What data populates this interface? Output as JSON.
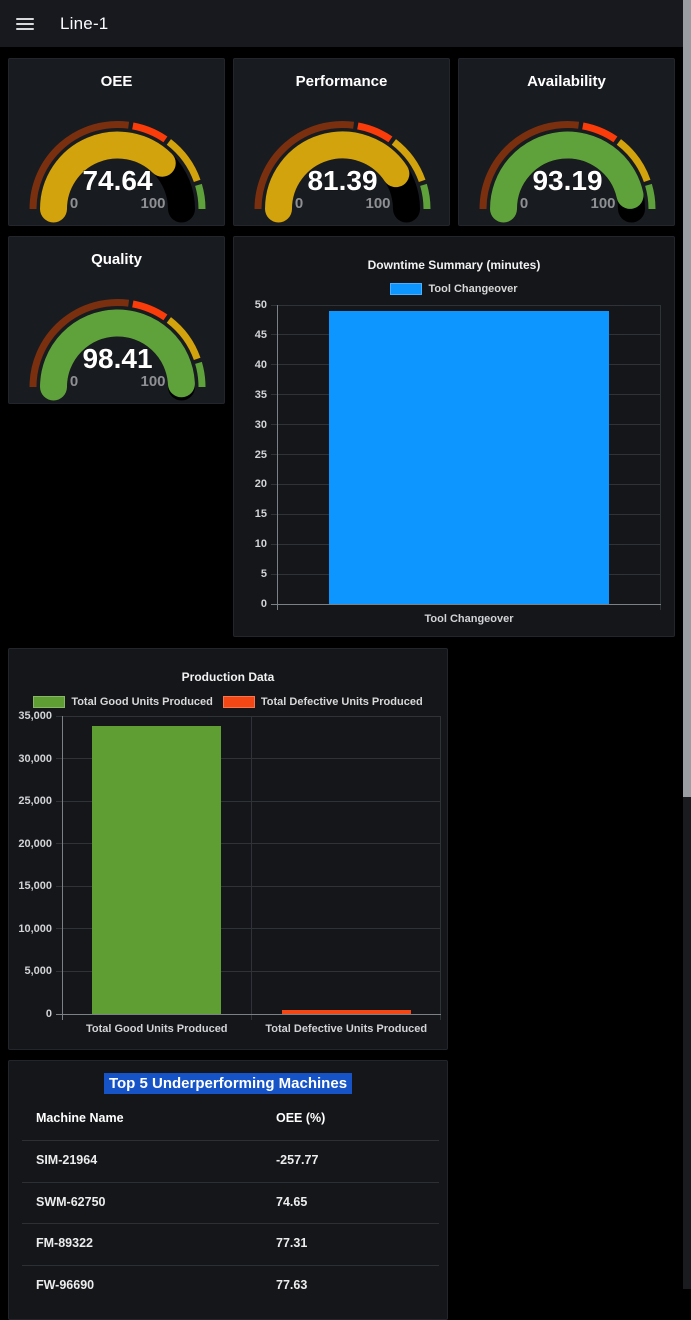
{
  "header": {
    "title": "Line-1",
    "menu_icon": "hamburger-icon"
  },
  "colors": {
    "topbar_bg": "#17191f",
    "panel_bg": "#181b1f",
    "accent_blue": "#0d96ff",
    "good_green": "#5f9e33",
    "defect_red": "#f34716",
    "gauge_yellow": "#d2a30d",
    "gauge_green": "#5fa23c",
    "threshold_dark_red": "#7a2f0f",
    "threshold_red": "#fa3c0a",
    "table_title_highlight": "#1553c6",
    "scrollbar_thumb": "#9a9da1"
  },
  "gauge_thresholds": [
    {
      "from": 0,
      "color": "#7a2f0f"
    },
    {
      "from": 55,
      "color": "#fa3c0a"
    },
    {
      "from": 70,
      "color": "#d2a30d"
    },
    {
      "from": 90,
      "color": "#5fa23c"
    }
  ],
  "gauges": [
    {
      "title": "OEE",
      "value": "74.64",
      "min": "0",
      "max": "100"
    },
    {
      "title": "Performance",
      "value": "81.39",
      "min": "0",
      "max": "100"
    },
    {
      "title": "Availability",
      "value": "93.19",
      "min": "0",
      "max": "100"
    },
    {
      "title": "Quality",
      "value": "98.41",
      "min": "0",
      "max": "100"
    }
  ],
  "chart_data": [
    {
      "type": "bar",
      "title": "Downtime Summary (minutes)",
      "categories": [
        "Tool Changeover"
      ],
      "series": [
        {
          "name": "Tool Changeover",
          "color": "#0d96ff",
          "values": [
            49
          ]
        }
      ],
      "yticks": [
        0,
        5,
        10,
        15,
        20,
        25,
        30,
        35,
        40,
        45,
        50
      ],
      "ylim": [
        0,
        50
      ],
      "grid": true,
      "legend_position": "top",
      "xlabel": "",
      "ylabel": ""
    },
    {
      "type": "bar",
      "title": "Production Data",
      "categories": [
        "Total Good Units Produced",
        "Total Defective Units Produced"
      ],
      "series": [
        {
          "name": "Total Good Units Produced",
          "color": "#5f9e33",
          "values": [
            33800,
            null
          ]
        },
        {
          "name": "Total Defective Units Produced",
          "color": "#f34716",
          "values": [
            null,
            500
          ]
        }
      ],
      "yticks": [
        0,
        5000,
        10000,
        15000,
        20000,
        25000,
        30000,
        35000
      ],
      "ylim": [
        0,
        35000
      ],
      "grid": true,
      "legend_position": "top",
      "xlabel": "",
      "ylabel": ""
    }
  ],
  "table": {
    "title": "Top 5 Underperforming Machines",
    "columns": [
      "Machine Name",
      "OEE (%)"
    ],
    "rows": [
      [
        "SIM-21964",
        "-257.77"
      ],
      [
        "SWM-62750",
        "74.65"
      ],
      [
        "FM-89322",
        "77.31"
      ],
      [
        "FW-96690",
        "77.63"
      ]
    ]
  }
}
